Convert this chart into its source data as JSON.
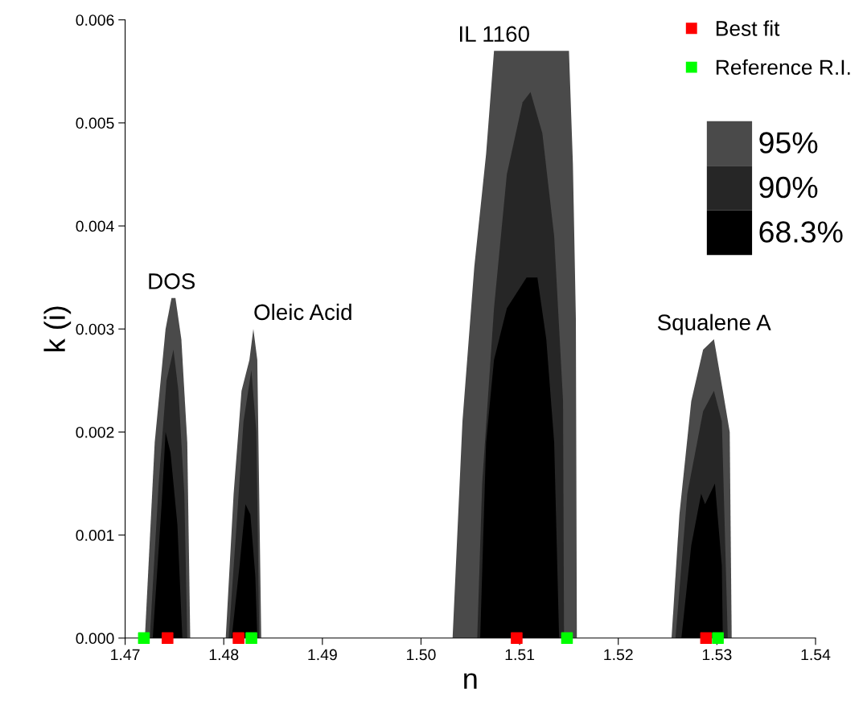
{
  "chart_data": {
    "type": "area",
    "xlabel": "n",
    "ylabel": "k (i)",
    "xlim": [
      1.47,
      1.54
    ],
    "ylim": [
      0,
      0.006
    ],
    "xticks": [
      1.47,
      1.48,
      1.49,
      {
        "value": 1.5,
        "label": "1.50"
      },
      1.51,
      1.52,
      1.53,
      1.54
    ],
    "yticks": [
      {
        "value": 0,
        "label": "0.000"
      },
      0.001,
      0.002,
      0.003,
      0.004,
      0.005,
      0.006
    ],
    "grid": false,
    "legend": "top right",
    "series": [
      {
        "name": "95%",
        "color": "#4a4a4a",
        "x": [
          1.472,
          1.473,
          1.4741,
          1.4747,
          1.4751,
          1.4757,
          1.4763,
          1.4766
        ],
        "values": [
          0,
          0.0019,
          0.003,
          0.0033,
          0.0033,
          0.0029,
          0.0019,
          0
        ]
      },
      {
        "name": "90%",
        "color": "#262626",
        "x": [
          1.4725,
          1.4734,
          1.4742,
          1.4749,
          1.4754,
          1.476,
          1.4763
        ],
        "values": [
          0,
          0.0015,
          0.0025,
          0.0028,
          0.0024,
          0.0014,
          0
        ]
      },
      {
        "name": "68.3%",
        "color": "#000000",
        "x": [
          1.4728,
          1.4737,
          1.4741,
          1.4746,
          1.4753,
          1.4758
        ],
        "values": [
          0,
          0.0013,
          0.002,
          0.0018,
          0.0011,
          0
        ]
      },
      {
        "color": "#4a4a4a",
        "x": [
          1.4802,
          1.481,
          1.4818,
          1.4826,
          1.483,
          1.4834,
          1.4838
        ],
        "values": [
          0,
          0.0014,
          0.0024,
          0.0027,
          0.003,
          0.0027,
          0
        ]
      },
      {
        "color": "#262626",
        "x": [
          1.4805,
          1.4813,
          1.482,
          1.4828,
          1.4833,
          1.4836
        ],
        "values": [
          0,
          0.0011,
          0.0021,
          0.0026,
          0.002,
          0
        ]
      },
      {
        "color": "#000000",
        "x": [
          1.4808,
          1.4816,
          1.4822,
          1.4827,
          1.4832,
          1.4834
        ],
        "values": [
          0,
          0.0007,
          0.0013,
          0.0012,
          0.0006,
          0
        ]
      },
      {
        "color": "#4a4a4a",
        "x": [
          1.5032,
          1.5042,
          1.5054,
          1.5066,
          1.5074,
          1.515,
          1.5154,
          1.5157,
          1.5158
        ],
        "values": [
          0,
          0.0021,
          0.0036,
          0.0047,
          0.0057,
          0.0057,
          0.0046,
          0.0031,
          0
        ]
      },
      {
        "color": "#262626",
        "x": [
          1.5057,
          1.5062,
          1.5074,
          1.5087,
          1.5103,
          1.5111,
          1.5123,
          1.5135,
          1.5144,
          1.5145
        ],
        "values": [
          0,
          0.0015,
          0.0032,
          0.0045,
          0.0052,
          0.0053,
          0.0049,
          0.0039,
          0.0023,
          0
        ]
      },
      {
        "color": "#000000",
        "x": [
          1.506,
          1.5066,
          1.5074,
          1.5087,
          1.5107,
          1.5118,
          1.5127,
          1.5135,
          1.514
        ],
        "values": [
          0,
          0.0019,
          0.0027,
          0.0032,
          0.0035,
          0.0035,
          0.0029,
          0.0019,
          0
        ]
      },
      {
        "color": "#4a4a4a",
        "x": [
          1.5254,
          1.5262,
          1.5274,
          1.5286,
          1.5297,
          1.5306,
          1.5313,
          1.5315
        ],
        "values": [
          0,
          0.0012,
          0.0023,
          0.0028,
          0.0029,
          0.0024,
          0.002,
          0
        ]
      },
      {
        "color": "#262626",
        "x": [
          1.5258,
          1.527,
          1.5286,
          1.5297,
          1.5305,
          1.5311
        ],
        "values": [
          0,
          0.0014,
          0.0022,
          0.0024,
          0.0021,
          0
        ]
      },
      {
        "color": "#000000",
        "x": [
          1.5264,
          1.5274,
          1.5284,
          1.5288,
          1.5298,
          1.5305,
          1.5306
        ],
        "values": [
          0,
          0.0009,
          0.0014,
          0.0013,
          0.0015,
          0.0007,
          0
        ]
      },
      {
        "name": "Best fit",
        "type": "scatter",
        "marker": "square",
        "color": "#ff0000",
        "x": [
          1.4743,
          1.4815,
          1.5097,
          1.5289
        ],
        "values": [
          0,
          0,
          0,
          0
        ]
      },
      {
        "name": "Reference R.I.",
        "type": "scatter",
        "marker": "square",
        "color": "#00ff00",
        "x": [
          1.4719,
          1.4828,
          1.5148,
          1.5301
        ],
        "values": [
          0,
          0,
          0,
          0
        ]
      }
    ],
    "annotations": [
      "DOS",
      "Oleic Acid",
      "IL 1160",
      "Squalene A"
    ]
  }
}
